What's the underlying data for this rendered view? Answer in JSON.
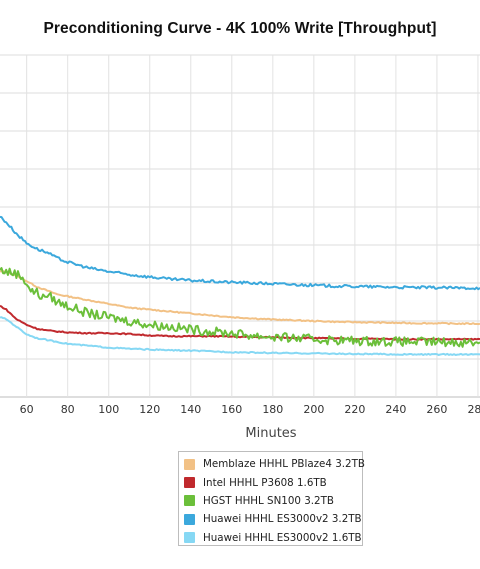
{
  "chart_data": {
    "type": "line",
    "title": "Preconditioning Curve - 4K 100% Write [Throughput]",
    "xlabel": "Minutes",
    "ylabel": "",
    "x_ticks": [
      60,
      80,
      100,
      120,
      140,
      160,
      180,
      200,
      220,
      240,
      260,
      280
    ],
    "xlim": [
      47,
      281
    ],
    "ylim": [
      0,
      9
    ],
    "grid": true,
    "legend_position": "bottom-center",
    "series": [
      {
        "name": "Memblaze HHHL PBlaze4 3.2TB",
        "color": "#f2c185",
        "x": [
          47,
          50,
          55,
          60,
          65,
          70,
          75,
          80,
          90,
          100,
          110,
          120,
          130,
          140,
          150,
          160,
          170,
          180,
          190,
          200,
          210,
          220,
          230,
          240,
          250,
          260,
          270,
          281
        ],
        "y": [
          3.3,
          3.3,
          3.2,
          3.05,
          2.9,
          2.8,
          2.7,
          2.65,
          2.55,
          2.45,
          2.35,
          2.3,
          2.25,
          2.2,
          2.15,
          2.1,
          2.07,
          2.04,
          2.02,
          2.0,
          1.98,
          1.97,
          1.96,
          1.95,
          1.94,
          1.94,
          1.93,
          1.93
        ]
      },
      {
        "name": "Intel HHHL P3608 1.6TB",
        "color": "#c0292d",
        "x": [
          47,
          50,
          55,
          60,
          65,
          70,
          80,
          90,
          100,
          110,
          120,
          130,
          140,
          150,
          160,
          170,
          180,
          190,
          200,
          210,
          220,
          230,
          240,
          250,
          260,
          270,
          281
        ],
        "y": [
          2.4,
          2.3,
          2.05,
          1.9,
          1.8,
          1.75,
          1.7,
          1.68,
          1.68,
          1.66,
          1.62,
          1.6,
          1.6,
          1.6,
          1.59,
          1.58,
          1.57,
          1.56,
          1.55,
          1.54,
          1.53,
          1.53,
          1.52,
          1.52,
          1.52,
          1.52,
          1.52
        ]
      },
      {
        "name": "HGST HHHL SN100 3.2TB",
        "color": "#6bbf3a",
        "x": [
          47,
          50,
          55,
          58,
          60,
          62,
          65,
          68,
          70,
          75,
          80,
          85,
          90,
          100,
          110,
          120,
          130,
          140,
          150,
          160,
          170,
          180,
          190,
          200,
          210,
          220,
          230,
          240,
          250,
          260,
          270,
          281
        ],
        "y": [
          3.35,
          3.3,
          3.25,
          3.15,
          3.0,
          2.8,
          2.75,
          2.6,
          2.7,
          2.5,
          2.4,
          2.3,
          2.2,
          2.1,
          2.0,
          1.9,
          1.85,
          1.78,
          1.72,
          1.68,
          1.62,
          1.58,
          1.55,
          1.52,
          1.5,
          1.48,
          1.47,
          1.46,
          1.45,
          1.45,
          1.44,
          1.44
        ]
      },
      {
        "name": "Huawei HHHL ES3000v2 3.2TB",
        "color": "#3ba8dc",
        "x": [
          47,
          50,
          55,
          60,
          65,
          70,
          75,
          80,
          90,
          100,
          110,
          120,
          130,
          140,
          150,
          160,
          170,
          180,
          190,
          200,
          210,
          220,
          230,
          240,
          250,
          260,
          270,
          281
        ],
        "y": [
          4.75,
          4.6,
          4.3,
          4.05,
          3.9,
          3.8,
          3.65,
          3.55,
          3.4,
          3.3,
          3.22,
          3.16,
          3.1,
          3.07,
          3.04,
          3.02,
          3.0,
          2.98,
          2.96,
          2.94,
          2.92,
          2.91,
          2.9,
          2.89,
          2.88,
          2.88,
          2.87,
          2.87
        ]
      },
      {
        "name": "Huawei HHHL ES3000v2 1.6TB",
        "color": "#86d8f4",
        "x": [
          47,
          50,
          55,
          60,
          65,
          70,
          75,
          80,
          90,
          100,
          110,
          120,
          130,
          140,
          150,
          160,
          170,
          180,
          190,
          200,
          210,
          220,
          230,
          240,
          250,
          260,
          270,
          281
        ],
        "y": [
          2.1,
          2.05,
          1.85,
          1.65,
          1.55,
          1.5,
          1.45,
          1.4,
          1.35,
          1.3,
          1.27,
          1.25,
          1.23,
          1.22,
          1.2,
          1.18,
          1.17,
          1.16,
          1.15,
          1.15,
          1.14,
          1.13,
          1.13,
          1.12,
          1.12,
          1.12,
          1.12,
          1.12
        ]
      }
    ]
  }
}
